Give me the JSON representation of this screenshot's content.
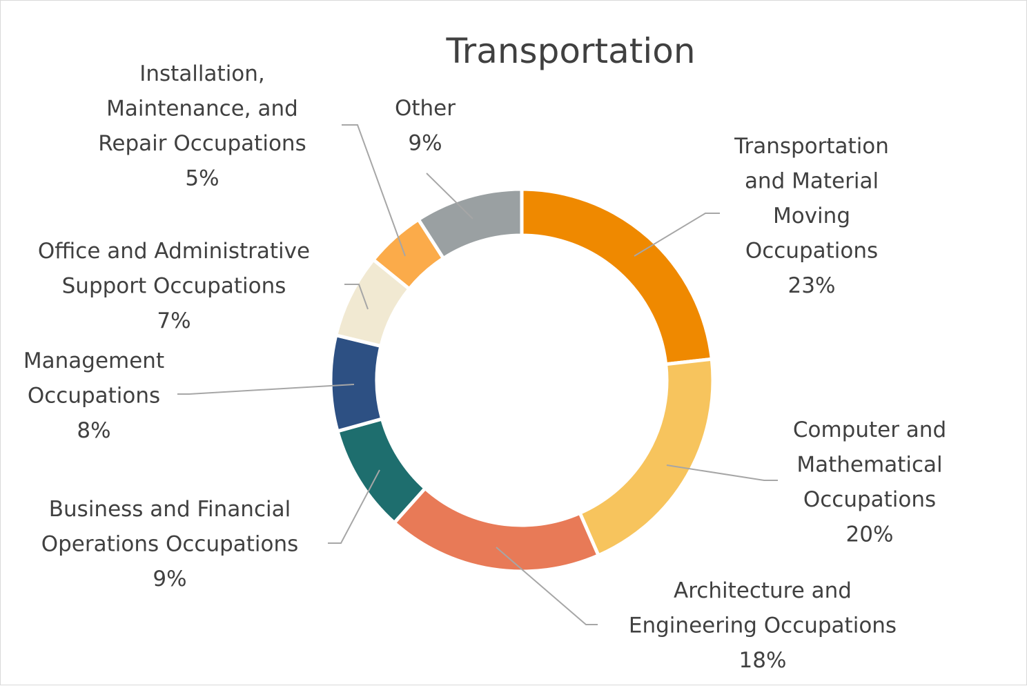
{
  "chart_data": {
    "type": "pie",
    "title": "Transportation",
    "series": [
      {
        "name": "",
        "values": [
          {
            "label": "Transportation and Material Moving Occupations",
            "value": 23,
            "percent_label": "23%",
            "color": "#ef8900"
          },
          {
            "label": "Computer and Mathematical Occupations",
            "value": 20,
            "percent_label": "20%",
            "color": "#f7c45d"
          },
          {
            "label": "Architecture and Engineering Occupations",
            "value": 18,
            "percent_label": "18%",
            "color": "#e87a57"
          },
          {
            "label": "Business and Financial Operations Occupations",
            "value": 9,
            "percent_label": "9%",
            "color": "#1e6e6e"
          },
          {
            "label": "Management Occupations",
            "value": 8,
            "percent_label": "8%",
            "color": "#2d5083"
          },
          {
            "label": "Office and Administrative Support Occupations",
            "value": 7,
            "percent_label": "7%",
            "color": "#f1e9d2"
          },
          {
            "label": "Installation, Maintenance, and Repair Occupations",
            "value": 5,
            "percent_label": "5%",
            "color": "#fbab4a"
          },
          {
            "label": "Other",
            "value": 9,
            "percent_label": "9%",
            "color": "#9aa0a2"
          }
        ]
      }
    ],
    "donut": true,
    "legend": "none",
    "data_labels": "outside with leader lines"
  }
}
